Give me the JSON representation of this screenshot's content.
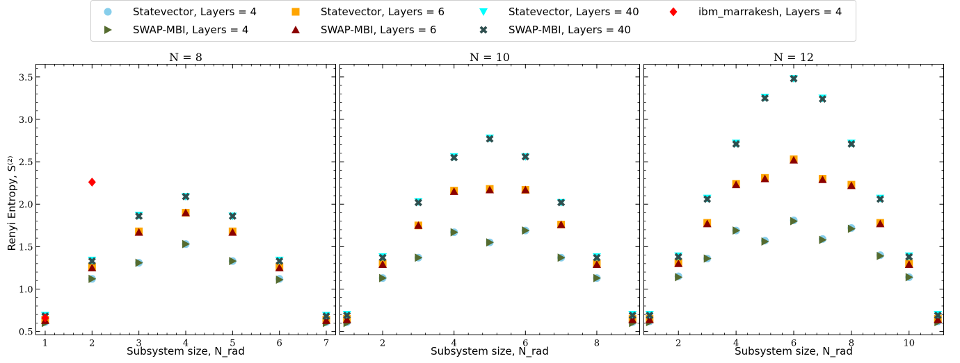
{
  "legend": {
    "placement": "top-center",
    "entries": [
      {
        "key": "sv4",
        "label": "Statevector, Layers = 4",
        "marker": "circle",
        "color": "#87CEEB"
      },
      {
        "key": "sv6",
        "label": "Statevector, Layers = 6",
        "marker": "square",
        "color": "#FFA500"
      },
      {
        "key": "sv40",
        "label": "Statevector, Layers = 40",
        "marker": "triangle-down",
        "color": "#00FFFF"
      },
      {
        "key": "ibm",
        "label": "ibm_marrakesh, Layers = 4",
        "marker": "diamond",
        "color": "#FF0000"
      },
      {
        "key": "sm4",
        "label": "SWAP-MBI, Layers = 4",
        "marker": "triangle-right",
        "color": "#556B2F"
      },
      {
        "key": "sm6",
        "label": "SWAP-MBI, Layers = 6",
        "marker": "triangle-up",
        "color": "#8B0000"
      },
      {
        "key": "sm40",
        "label": "SWAP-MBI, Layers = 40",
        "marker": "x",
        "color": "#2F4F4F"
      }
    ]
  },
  "ylabel": "Renyi Entropy, S⁽²⁾",
  "chart_data": [
    {
      "type": "scatter",
      "title": "N = 8",
      "xlabel": "Subsystem size, N_rad",
      "ylabel": "Renyi Entropy, S⁽²⁾",
      "xlim": [
        0.8,
        7.2
      ],
      "ylim": [
        0.46,
        3.65
      ],
      "xticks": [
        1,
        2,
        3,
        4,
        5,
        6,
        7
      ],
      "yticks": [
        0.5,
        1.0,
        1.5,
        2.0,
        2.5,
        3.0,
        3.5
      ],
      "ytick_labels": [
        "0.5",
        "1.0",
        "1.5",
        "2.0",
        "2.5",
        "3.0",
        "3.5"
      ],
      "grid": false,
      "x": [
        1,
        2,
        3,
        4,
        5,
        6,
        7
      ],
      "series": [
        {
          "key": "sv4",
          "values": [
            0.61,
            1.12,
            1.31,
            1.53,
            1.33,
            1.12,
            0.61
          ]
        },
        {
          "key": "sm4",
          "values": [
            0.6,
            1.12,
            1.31,
            1.53,
            1.33,
            1.11,
            0.6
          ]
        },
        {
          "key": "sv6",
          "values": [
            0.64,
            1.26,
            1.68,
            1.9,
            1.68,
            1.26,
            0.64
          ]
        },
        {
          "key": "sm6",
          "values": [
            0.63,
            1.25,
            1.67,
            1.9,
            1.67,
            1.25,
            0.63
          ]
        },
        {
          "key": "sv40",
          "values": [
            0.69,
            1.34,
            1.87,
            2.09,
            1.86,
            1.34,
            0.69
          ]
        },
        {
          "key": "sm40",
          "values": [
            0.68,
            1.33,
            1.86,
            2.09,
            1.86,
            1.33,
            0.68
          ]
        },
        {
          "key": "ibm",
          "x": [
            1,
            2
          ],
          "values": [
            0.66,
            2.26
          ]
        }
      ]
    },
    {
      "type": "scatter",
      "title": "N = 10",
      "xlabel": "Subsystem size, N_rad",
      "xlim": [
        0.8,
        9.2
      ],
      "ylim": [
        0.46,
        3.65
      ],
      "xticks": [
        2,
        4,
        6,
        8
      ],
      "grid": false,
      "x": [
        1,
        2,
        3,
        4,
        5,
        6,
        7,
        8,
        9
      ],
      "series": [
        {
          "key": "sv4",
          "values": [
            0.61,
            1.13,
            1.37,
            1.67,
            1.55,
            1.69,
            1.37,
            1.13,
            0.61
          ]
        },
        {
          "key": "sm4",
          "values": [
            0.6,
            1.13,
            1.37,
            1.67,
            1.55,
            1.69,
            1.37,
            1.13,
            0.6
          ]
        },
        {
          "key": "sv6",
          "values": [
            0.65,
            1.3,
            1.75,
            2.16,
            2.18,
            2.17,
            1.76,
            1.3,
            0.65
          ]
        },
        {
          "key": "sm6",
          "values": [
            0.64,
            1.29,
            1.75,
            2.15,
            2.17,
            2.17,
            1.76,
            1.29,
            0.64
          ]
        },
        {
          "key": "sv40",
          "values": [
            0.7,
            1.38,
            2.03,
            2.56,
            2.78,
            2.56,
            2.02,
            1.38,
            0.7
          ]
        },
        {
          "key": "sm40",
          "values": [
            0.69,
            1.37,
            2.02,
            2.55,
            2.77,
            2.56,
            2.02,
            1.37,
            0.69
          ]
        }
      ]
    },
    {
      "type": "scatter",
      "title": "N = 12",
      "xlabel": "Subsystem size, N_rad",
      "xlim": [
        0.8,
        11.2
      ],
      "ylim": [
        0.46,
        3.65
      ],
      "xticks": [
        2,
        4,
        6,
        8,
        10
      ],
      "grid": false,
      "x": [
        1,
        2,
        3,
        4,
        5,
        6,
        7,
        8,
        9,
        10,
        11
      ],
      "series": [
        {
          "key": "sv4",
          "values": [
            0.62,
            1.15,
            1.36,
            1.69,
            1.57,
            1.81,
            1.59,
            1.72,
            1.4,
            1.14,
            0.62
          ]
        },
        {
          "key": "sm4",
          "values": [
            0.61,
            1.14,
            1.36,
            1.69,
            1.56,
            1.8,
            1.58,
            1.71,
            1.39,
            1.14,
            0.61
          ]
        },
        {
          "key": "sv6",
          "values": [
            0.65,
            1.31,
            1.78,
            2.24,
            2.31,
            2.53,
            2.3,
            2.23,
            1.78,
            1.3,
            0.65
          ]
        },
        {
          "key": "sm6",
          "values": [
            0.64,
            1.3,
            1.77,
            2.23,
            2.3,
            2.52,
            2.29,
            2.22,
            1.77,
            1.29,
            0.64
          ]
        },
        {
          "key": "sv40",
          "values": [
            0.7,
            1.39,
            2.07,
            2.72,
            3.26,
            3.48,
            3.25,
            2.72,
            2.07,
            1.39,
            0.7
          ]
        },
        {
          "key": "sm40",
          "values": [
            0.69,
            1.38,
            2.06,
            2.71,
            3.25,
            3.48,
            3.24,
            2.71,
            2.06,
            1.38,
            0.69
          ]
        }
      ]
    }
  ]
}
